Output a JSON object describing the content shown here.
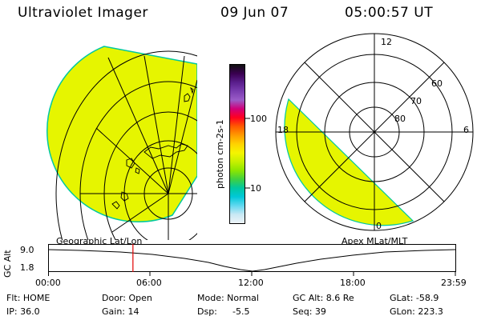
{
  "header": {
    "instrument": "Ultraviolet Imager",
    "date": "09 Jun 07",
    "time": "05:00:57 UT"
  },
  "colorbar": {
    "unit_label": "photon cm-2s-1",
    "tick_labels": [
      "100",
      "10"
    ],
    "colors": [
      "#101010",
      "#3a0050",
      "#5a1e8c",
      "#7a3db0",
      "#9a5cc8",
      "#d0007a",
      "#ff0020",
      "#ff5a00",
      "#ff9a00",
      "#ffd200",
      "#f5f500",
      "#c8f000",
      "#8ce600",
      "#40d040",
      "#00c8a0",
      "#00c8d8",
      "#60d8f0",
      "#c8e8f4",
      "#eef4f8"
    ]
  },
  "left_map": {
    "label": "Geographic Lat/Lon",
    "fill_color": "#e6f500",
    "edge_color": "#00c8a0"
  },
  "right_map": {
    "label": "Apex MLat/MLT",
    "mlt_labels": [
      "12",
      "18",
      "6",
      "0"
    ],
    "mlat_labels": [
      "60",
      "70",
      "80"
    ],
    "fill_color": "#e6f500"
  },
  "alt_plot": {
    "ylabel": "GC Alt",
    "yticks": [
      "9.0",
      "1.8"
    ],
    "xticks": [
      "00:00",
      "06:00",
      "12:00",
      "18:00",
      "23:59"
    ],
    "marker_time_hours": 5.0,
    "marker_color": "#e00000"
  },
  "status": {
    "flt": "Flt: HOME",
    "ip": "IP: 36.0",
    "door": "Door: Open",
    "gain": "Gain: 14",
    "mode": "Mode: Normal",
    "dsp_label": "Dsp:",
    "dsp_value": "-5.5",
    "gc_alt": "GC Alt: 8.6 Re",
    "seq": "Seq: 39",
    "glat": "GLat: -58.9",
    "glon": "GLon: 223.3"
  }
}
